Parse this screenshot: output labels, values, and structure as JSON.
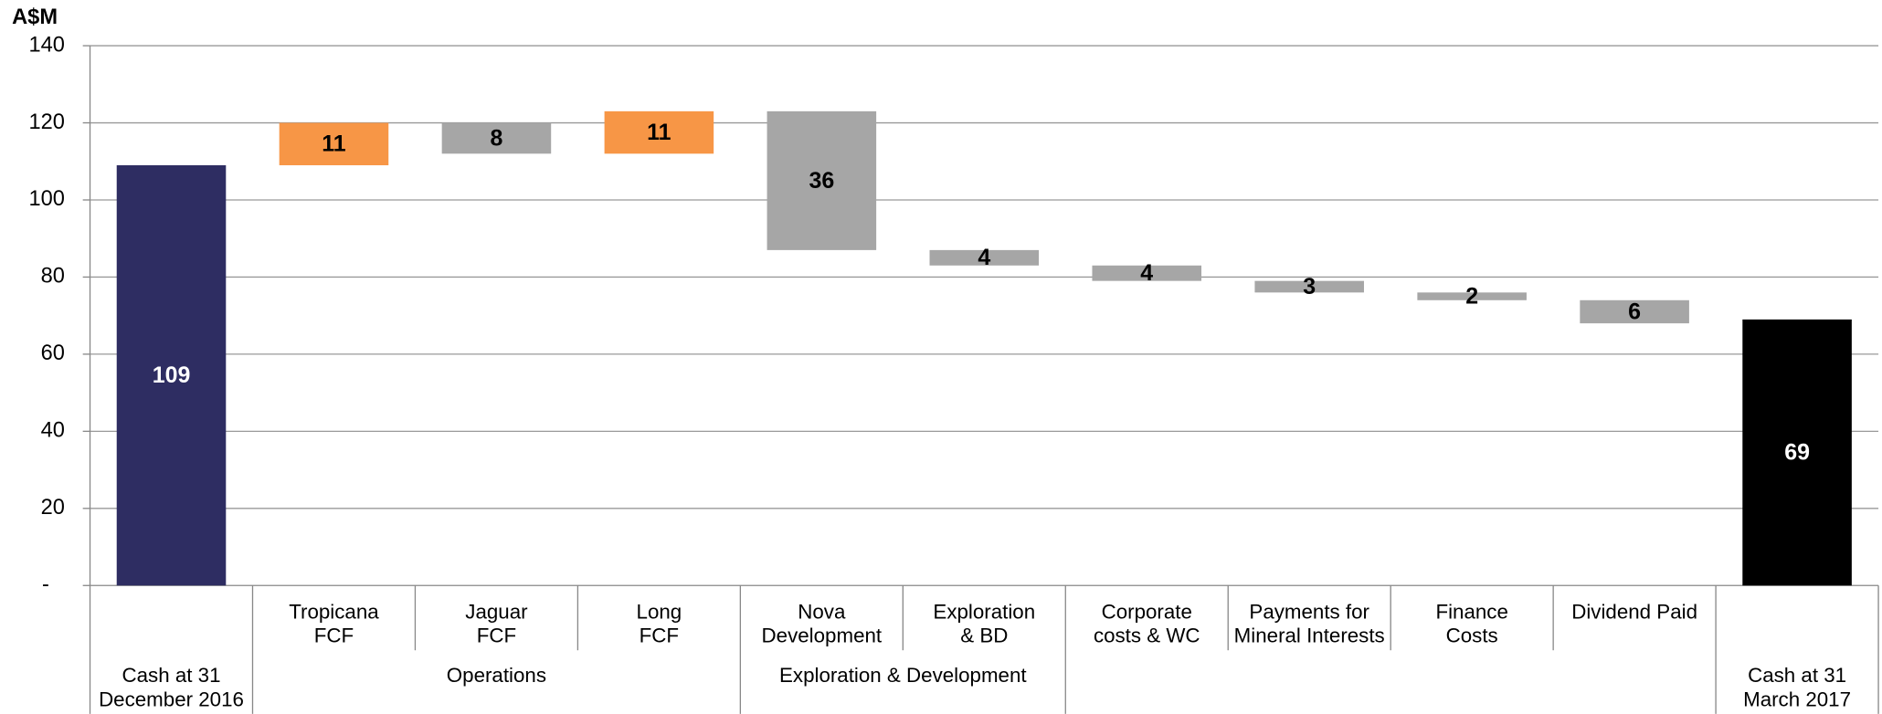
{
  "chart_data": {
    "type": "waterfall",
    "y_label": "A$M",
    "groups": [
      {
        "name": [
          "Cash at 31",
          "December 2016"
        ],
        "categories": [
          null
        ]
      },
      {
        "name": [
          "Operations"
        ],
        "categories": [
          [
            "Tropicana",
            "FCF"
          ],
          [
            "Jaguar",
            "FCF"
          ],
          [
            "Long",
            "FCF"
          ]
        ]
      },
      {
        "name": [
          "Exploration & Development"
        ],
        "categories": [
          [
            "Nova",
            "Development"
          ],
          [
            "Exploration",
            "& BD"
          ]
        ]
      },
      {
        "categories": [
          [
            "Corporate",
            "costs & WC"
          ],
          [
            "Payments for",
            "Mineral Interests"
          ],
          [
            "Finance",
            "Costs"
          ],
          [
            "Dividend Paid"
          ]
        ]
      },
      {
        "name": [
          "Cash at 31",
          "March 2017"
        ],
        "categories": [
          null
        ]
      }
    ],
    "measure": [
      "total",
      "relative",
      "relative",
      "relative",
      "relative",
      "relative",
      "relative",
      "relative",
      "relative",
      "relative",
      "total"
    ],
    "values": [
      109,
      11,
      -8,
      11,
      -36,
      -4,
      -4,
      -3,
      -2,
      -6,
      69
    ],
    "value_labels": [
      "109",
      "11",
      "8",
      "11",
      "36",
      "4",
      "4",
      "3",
      "2",
      "6",
      "69"
    ],
    "colors": [
      "#2e2d62",
      "#f79646",
      "#a6a6a6",
      "#f79646",
      "#a6a6a6",
      "#a6a6a6",
      "#a6a6a6",
      "#a6a6a6",
      "#a6a6a6",
      "#a6a6a6",
      "#000000"
    ],
    "ylim": [
      0,
      140
    ],
    "yticks": [
      {
        "value": 0,
        "label": "-"
      },
      20,
      40,
      60,
      80,
      100,
      120,
      140
    ],
    "grid": true
  }
}
